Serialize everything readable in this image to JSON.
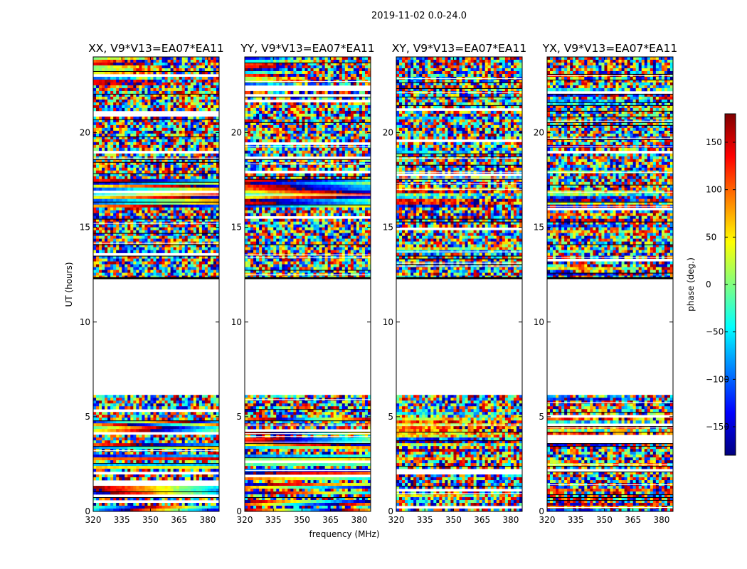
{
  "chart_data": {
    "type": "heatmap",
    "title": "2019-11-02 0.0-24.0",
    "xlabel": "frequency (MHz)",
    "ylabel": "UT (hours)",
    "xlim": [
      320,
      386
    ],
    "ylim": [
      0,
      24
    ],
    "xticks": [
      320,
      335,
      350,
      365,
      380
    ],
    "yticks": [
      0,
      5,
      10,
      15,
      20
    ],
    "colorbar": {
      "label": "phase (deg.)",
      "range": [
        -180,
        180
      ],
      "ticks": [
        150,
        100,
        50,
        0,
        -50,
        -100,
        -150
      ],
      "tick_labels": [
        "150",
        "100",
        "50",
        "0",
        "−50",
        "−100",
        "−150"
      ],
      "colormap": "jet",
      "stops": [
        "#00007f",
        "#0000ff",
        "#0080ff",
        "#00ffff",
        "#80ff80",
        "#ffff00",
        "#ff8000",
        "#ff0000",
        "#7f0000"
      ]
    },
    "data_gap_hours": [
      6.1,
      12.3
    ],
    "panels": [
      {
        "title": "XX, V9*V13=EA07*EA11",
        "ytick_labels": [
          "0",
          "5",
          "10",
          "15",
          "20"
        ],
        "xtick_labels": [
          "320",
          "335",
          "350",
          "365",
          "380"
        ]
      },
      {
        "title": "YY, V9*V13=EA07*EA11",
        "ytick_labels": [
          "0",
          "5",
          "10",
          "15",
          "20"
        ],
        "xtick_labels": [
          "320",
          "335",
          "350",
          "365",
          "380"
        ]
      },
      {
        "title": "XY, V9*V13=EA07*EA11",
        "ytick_labels": [
          "0",
          "5",
          "10",
          "15",
          "20"
        ],
        "xtick_labels": [
          "320",
          "335",
          "350",
          "365",
          "380"
        ]
      },
      {
        "title": "YX, V9*V13=EA07*EA11",
        "ytick_labels": [
          "0",
          "5",
          "10",
          "15",
          "20"
        ],
        "xtick_labels": [
          "320",
          "335",
          "350",
          "365",
          "380"
        ]
      }
    ]
  }
}
